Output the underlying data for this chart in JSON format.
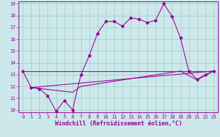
{
  "bg_color": "#cce8ea",
  "line_color": "#990099",
  "grid_color": "#aacccc",
  "xlabel": "Windchill (Refroidissement éolien,°C)",
  "xlim": [
    -0.5,
    23.5
  ],
  "ylim": [
    9.8,
    19.2
  ],
  "yticks": [
    10,
    11,
    12,
    13,
    14,
    15,
    16,
    17,
    18,
    19
  ],
  "xticks": [
    0,
    1,
    2,
    3,
    4,
    5,
    6,
    7,
    8,
    9,
    10,
    11,
    12,
    13,
    14,
    15,
    16,
    17,
    18,
    19,
    20,
    21,
    22,
    23
  ],
  "series1_x": [
    0,
    1,
    2,
    3,
    4,
    5,
    6,
    7,
    8,
    9,
    10,
    11,
    12,
    13,
    14,
    15,
    16,
    17,
    18,
    19,
    20,
    21,
    22,
    23
  ],
  "series1_y": [
    13.3,
    11.9,
    11.8,
    11.2,
    9.9,
    10.8,
    10.0,
    13.0,
    14.6,
    16.5,
    17.5,
    17.5,
    17.1,
    17.8,
    17.7,
    17.4,
    17.6,
    19.0,
    17.9,
    16.1,
    13.3,
    12.6,
    13.0,
    13.3
  ],
  "series2_x": [
    0,
    23
  ],
  "series2_y": [
    13.3,
    13.3
  ],
  "series3_x": [
    1,
    6,
    7,
    19,
    21,
    23
  ],
  "series3_y": [
    11.9,
    11.5,
    12.0,
    13.3,
    12.55,
    13.3
  ],
  "series4_x": [
    1,
    23
  ],
  "series4_y": [
    11.9,
    13.3
  ],
  "xlabel_fontsize": 6,
  "tick_fontsize": 5
}
